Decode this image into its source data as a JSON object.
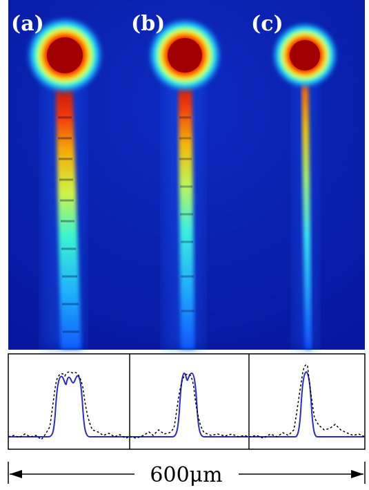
{
  "panels": [
    {
      "label": "(a)"
    },
    {
      "label": "(b)"
    },
    {
      "label": "(c)"
    }
  ],
  "scale_bar": {
    "label": "600μm"
  },
  "colors": {
    "background_blue": "#0a1fb0",
    "profile_line": "#2a2ad0",
    "dashed_line": "#000000"
  }
}
